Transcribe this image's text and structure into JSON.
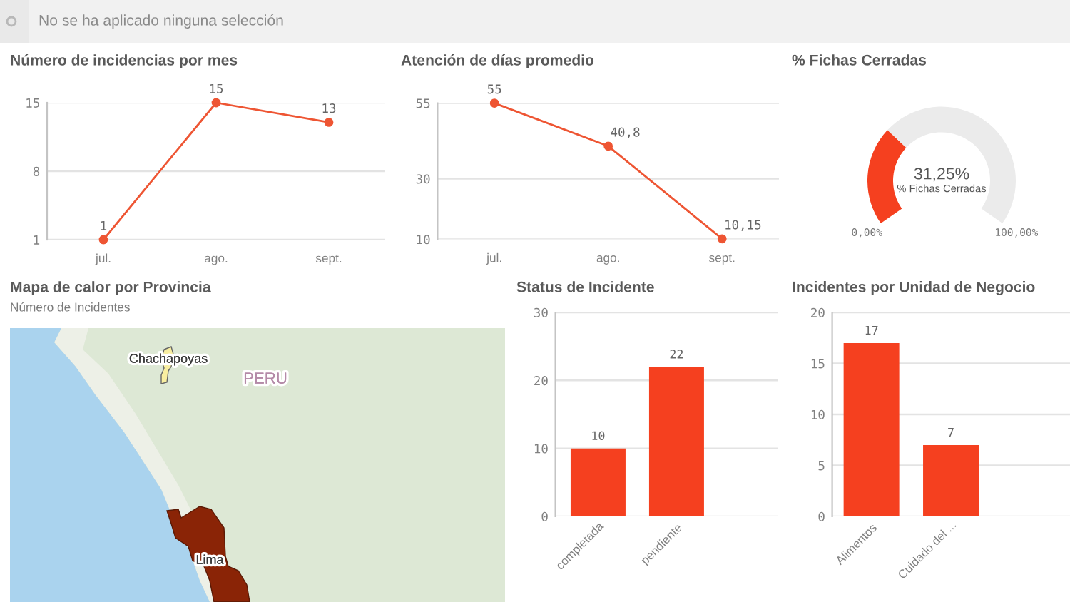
{
  "chart_data": [
    {
      "type": "other",
      "annotations": [
        "No se ha aplicado ninguna selección"
      ]
    },
    {
      "type": "line",
      "title": "Número de incidencias por mes",
      "categories": [
        "jul.",
        "ago.",
        "sept."
      ],
      "values": [
        1,
        15,
        13
      ],
      "color": "#ee5533",
      "ylim": [
        1,
        15
      ],
      "yticks": [
        1,
        8,
        15
      ],
      "grid": "y",
      "marker": "circle",
      "data_labels": true
    },
    {
      "type": "line",
      "title": "Atención de días promedio",
      "categories": [
        "jul.",
        "ago.",
        "sept."
      ],
      "values": [
        55,
        40.8,
        10.15
      ],
      "value_labels": [
        "55",
        "40,8",
        "10,15"
      ],
      "color": "#ee5533",
      "ylim": [
        10,
        55
      ],
      "yticks": [
        10,
        30,
        55
      ],
      "grid": "y",
      "marker": "circle"
    },
    {
      "type": "donut",
      "title": "% Fichas Cerradas",
      "categories": [
        null,
        null
      ],
      "values": [
        31.25,
        68.75
      ],
      "colors": [
        "#f5401f",
        "#ebebeb"
      ],
      "annotations": [
        "31,25%",
        "% Fichas Cerradas",
        "0,00%",
        "100,00%"
      ]
    },
    {
      "type": "other",
      "title": "Mapa de calor por Provincia",
      "subtitle": "Número de Incidentes",
      "annotations": [
        "Chachapoyas",
        "PERU",
        "Lima"
      ]
    },
    {
      "type": "bar",
      "title": "Status de Incidente",
      "categories": [
        "completada",
        "pendiente"
      ],
      "values": [
        10,
        22
      ],
      "color": "#f5401f",
      "ylim": [
        0,
        30
      ],
      "yticks": [
        0,
        10,
        20,
        30
      ],
      "grid": "y",
      "data_labels": true
    },
    {
      "type": "bar",
      "title": "Incidentes por Unidad de Negocio",
      "categories": [
        "Alimentos",
        "Cuidado del ..."
      ],
      "values": [
        17,
        7
      ],
      "color": "#f5401f",
      "ylim": [
        0,
        20
      ],
      "yticks": [
        0,
        5,
        10,
        15,
        20
      ],
      "grid": "y",
      "data_labels": true
    }
  ]
}
